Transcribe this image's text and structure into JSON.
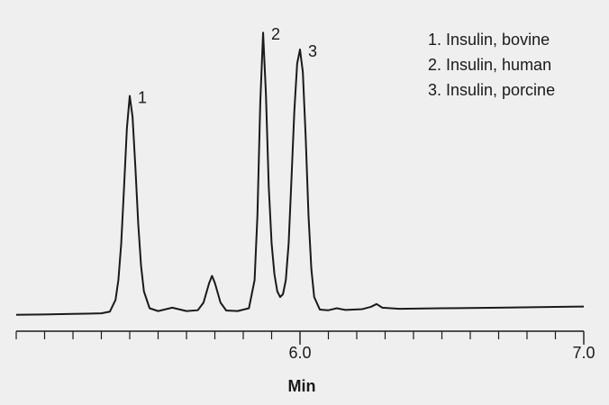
{
  "chart_data": {
    "type": "line",
    "x_label": "Min",
    "x": [
      5.0,
      5.1,
      5.2,
      5.25,
      5.3,
      5.33,
      5.35,
      5.36,
      5.37,
      5.38,
      5.39,
      5.4,
      5.41,
      5.42,
      5.43,
      5.44,
      5.45,
      5.47,
      5.5,
      5.55,
      5.6,
      5.64,
      5.66,
      5.68,
      5.69,
      5.7,
      5.72,
      5.74,
      5.78,
      5.82,
      5.84,
      5.85,
      5.86,
      5.87,
      5.88,
      5.89,
      5.9,
      5.91,
      5.92,
      5.93,
      5.94,
      5.95,
      5.96,
      5.97,
      5.98,
      5.99,
      6.0,
      6.01,
      6.02,
      6.03,
      6.04,
      6.05,
      6.07,
      6.1,
      6.13,
      6.16,
      6.22,
      6.25,
      6.27,
      6.29,
      6.35,
      6.5,
      6.7,
      6.9,
      7.0
    ],
    "values": [
      -0.3,
      -0.2,
      0.0,
      0.1,
      0.2,
      0.8,
      5,
      12,
      25,
      45,
      66,
      77.5,
      70,
      52,
      32,
      17,
      8,
      2,
      1.0,
      2.2,
      1.0,
      1.3,
      4,
      11,
      13.5,
      11,
      4,
      1.2,
      1.0,
      2,
      12,
      35,
      75,
      100,
      78,
      45,
      25,
      14,
      8,
      6,
      7,
      12,
      25,
      48,
      72,
      89,
      94,
      86,
      63,
      35,
      16,
      6,
      1.5,
      1.3,
      2.0,
      1.4,
      1.7,
      2.5,
      3.5,
      2.2,
      1.8,
      2.0,
      2.2,
      2.5,
      2.6
    ],
    "color": "#1a1a1a",
    "xlim": [
      5.0,
      7.0
    ],
    "ylim": [
      -2,
      102
    ],
    "xticks": [
      {
        "value": 6.0,
        "label": "6.0"
      },
      {
        "value": 7.0,
        "label": "7.0"
      }
    ],
    "xminorticks": [
      5.0,
      5.1,
      5.2,
      5.3,
      5.4,
      5.5,
      5.6,
      5.7,
      5.8,
      5.9,
      6.1,
      6.2,
      6.3,
      6.4,
      6.5,
      6.6,
      6.7,
      6.8,
      6.9
    ],
    "peak_labels": [
      {
        "text": "1",
        "x": 5.4
      },
      {
        "text": "2",
        "x": 5.87
      },
      {
        "text": "3",
        "x": 6.0
      }
    ],
    "legend": [
      "1. Insulin, bovine",
      "2. Insulin, human",
      "3. Insulin, porcine"
    ]
  }
}
